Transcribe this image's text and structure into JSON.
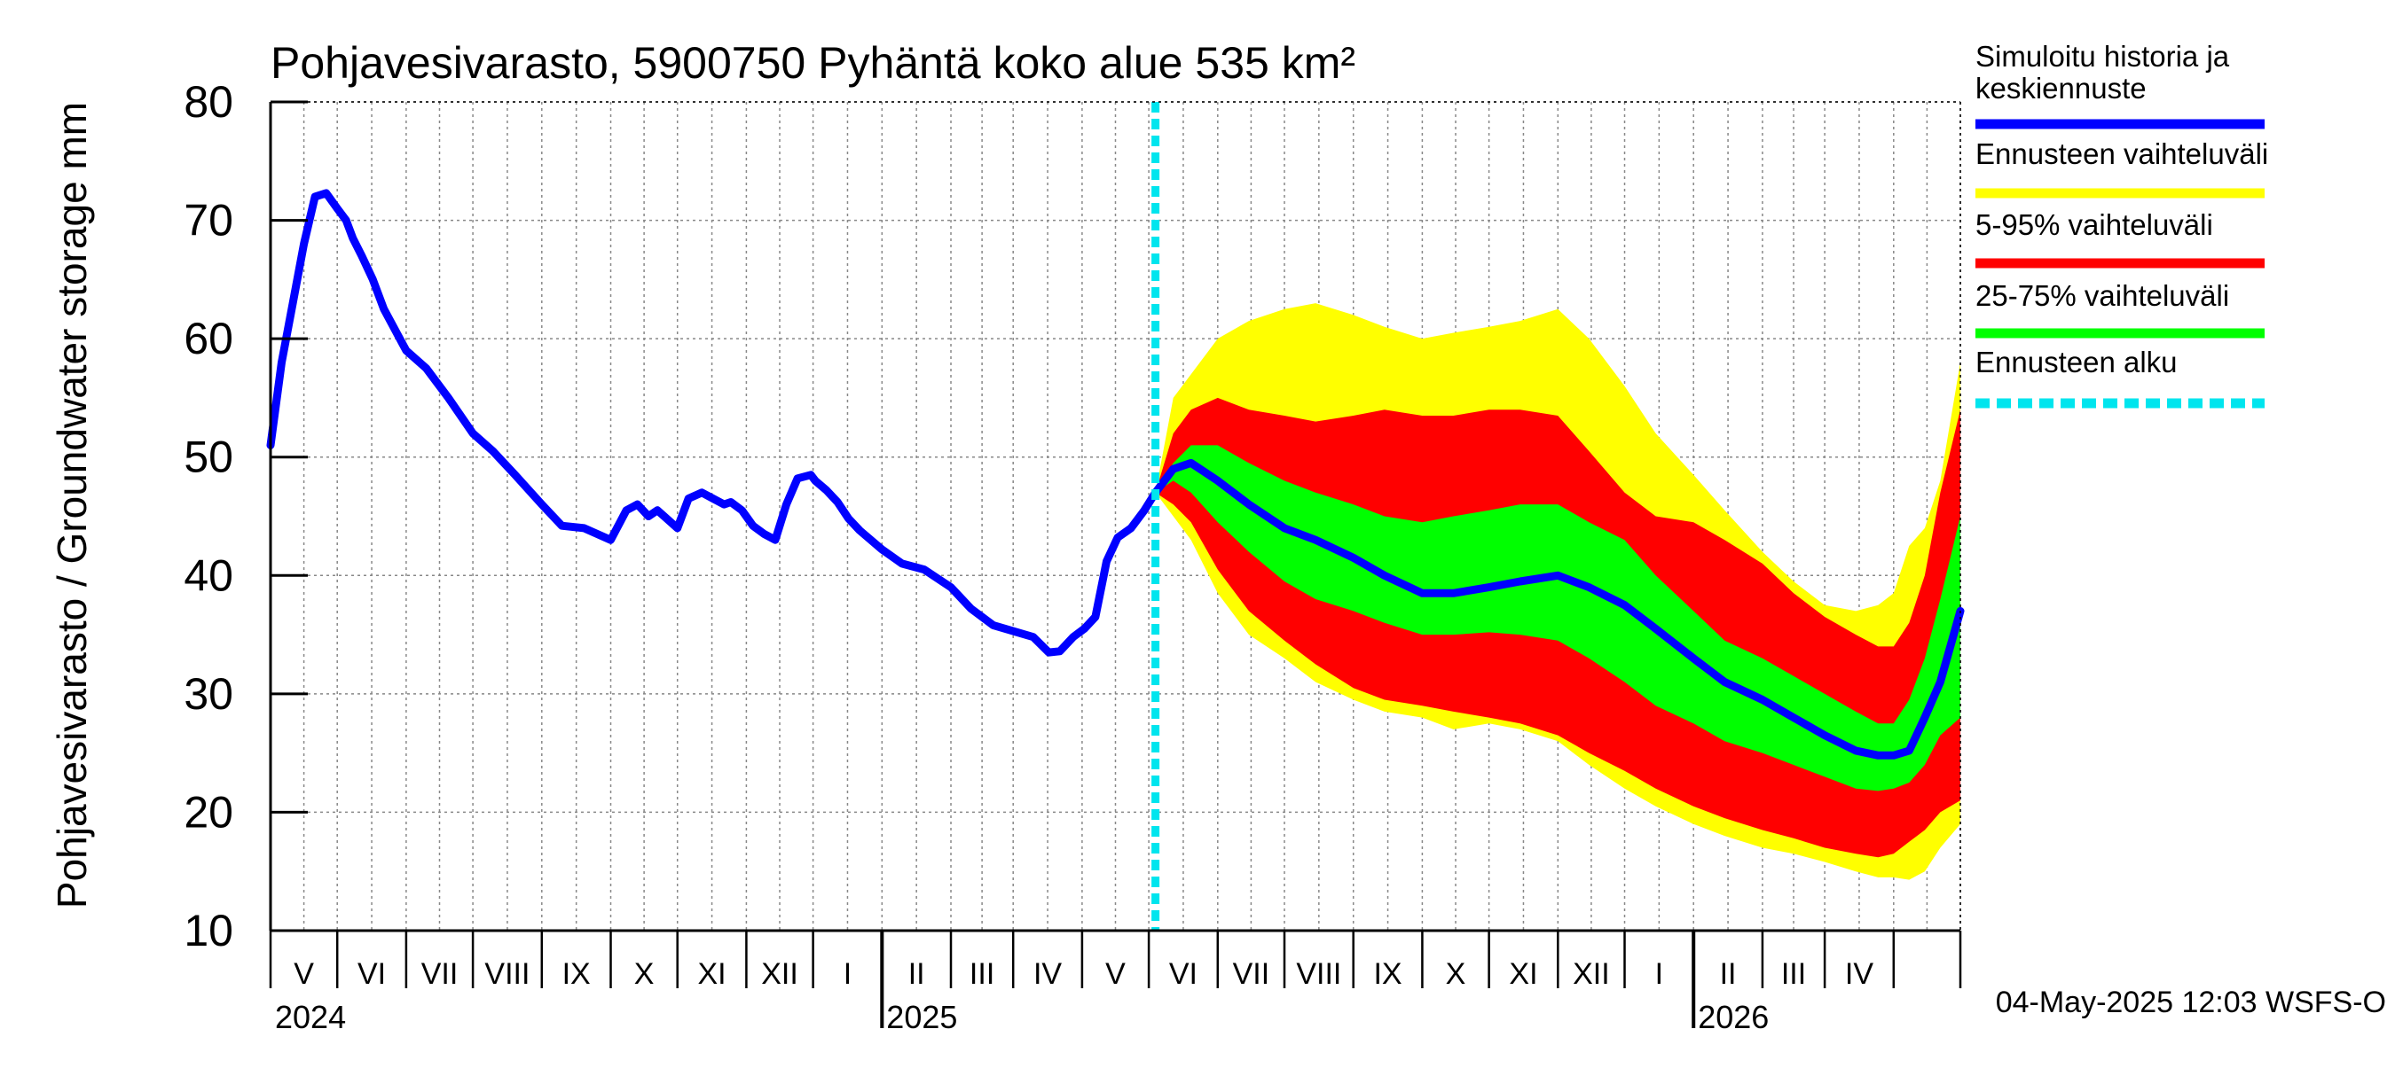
{
  "chart_data": {
    "type": "area",
    "title": "Pohjavesivarasto, 5900750 Pyhäntä koko alue 535 km²",
    "ylabel": "Pohjavesivarasto / Groundwater storage   mm",
    "ylim": [
      10,
      80
    ],
    "yticks": [
      "10",
      "20",
      "30",
      "40",
      "50",
      "60",
      "70",
      "80"
    ],
    "x_start": "2024-04-01",
    "x_end": "2026-05-01",
    "forecast_start": "2025-05-04",
    "month_labels": [
      "V",
      "VI",
      "VII",
      "VIII",
      "IX",
      "X",
      "XI",
      "XII",
      "I",
      "II",
      "III",
      "IV",
      "V",
      "VI",
      "VII",
      "VIII",
      "IX",
      "X",
      "XI",
      "XII",
      "I",
      "II",
      "III",
      "IV"
    ],
    "year_labels": [
      "2024",
      "2025",
      "2026"
    ],
    "grid": true,
    "footer": "04-May-2025 12:03 WSFS-O",
    "legend_position": "right",
    "legend": [
      {
        "label": "Simuloitu historia ja keskiennuste",
        "line1": "Simuloitu historia ja",
        "line2": "keskiennuste",
        "color": "#0000ff",
        "style": "solid"
      },
      {
        "label": "Ennusteen vaihteluväli",
        "color": "#ffff00",
        "style": "solid"
      },
      {
        "label": "5-95% vaihteluväli",
        "color": "#ff0000",
        "style": "solid"
      },
      {
        "label": "25-75% vaihteluväli",
        "color": "#00ff00",
        "style": "solid"
      },
      {
        "label": "Ennusteen alku",
        "color": "#00e5ee",
        "style": "dashed"
      }
    ],
    "history": {
      "x": [
        "2024-04-01",
        "2024-04-06",
        "2024-04-11",
        "2024-04-16",
        "2024-04-21",
        "2024-04-26",
        "2024-05-01",
        "2024-05-05",
        "2024-05-08",
        "2024-05-12",
        "2024-05-17",
        "2024-05-22",
        "2024-06-01",
        "2024-06-10",
        "2024-06-20",
        "2024-07-01",
        "2024-07-10",
        "2024-07-20",
        "2024-08-01",
        "2024-08-10",
        "2024-08-20",
        "2024-09-01",
        "2024-09-08",
        "2024-09-13",
        "2024-09-18",
        "2024-09-22",
        "2024-09-25",
        "2024-10-01",
        "2024-10-06",
        "2024-10-12",
        "2024-10-17",
        "2024-10-22",
        "2024-10-25",
        "2024-10-30",
        "2024-11-04",
        "2024-11-09",
        "2024-11-14",
        "2024-11-19",
        "2024-11-24",
        "2024-11-30",
        "2024-12-02",
        "2024-12-07",
        "2024-12-12",
        "2024-12-17",
        "2024-12-22",
        "2025-01-01",
        "2025-01-10",
        "2025-01-20",
        "2025-02-01",
        "2025-02-10",
        "2025-02-20",
        "2025-03-01",
        "2025-03-10",
        "2025-03-17",
        "2025-03-22",
        "2025-03-28",
        "2025-04-02",
        "2025-04-07",
        "2025-04-12",
        "2025-04-17",
        "2025-04-23",
        "2025-04-29",
        "2025-05-04"
      ],
      "y": [
        51,
        58,
        63,
        68,
        72,
        72.3,
        71,
        70,
        68.5,
        67,
        65,
        62.5,
        59,
        57.5,
        55,
        52,
        50.5,
        48.5,
        46,
        44.2,
        44,
        43,
        45.5,
        46,
        45,
        45.5,
        45,
        44,
        46.5,
        47,
        46.5,
        46,
        46.2,
        45.5,
        44.2,
        43.5,
        43,
        46,
        48.2,
        48.5,
        48,
        47.2,
        46.2,
        44.8,
        43.8,
        42.2,
        41,
        40.5,
        39,
        37.2,
        35.8,
        35.3,
        34.8,
        33.5,
        33.6,
        34.8,
        35.5,
        36.5,
        41.2,
        43.2,
        44,
        45.5,
        47
      ]
    },
    "forecast": {
      "x": [
        "2025-05-04",
        "2025-05-12",
        "2025-05-20",
        "2025-06-01",
        "2025-06-15",
        "2025-07-01",
        "2025-07-15",
        "2025-08-01",
        "2025-08-15",
        "2025-09-01",
        "2025-09-15",
        "2025-10-01",
        "2025-10-15",
        "2025-11-01",
        "2025-11-15",
        "2025-12-01",
        "2025-12-15",
        "2026-01-01",
        "2026-01-15",
        "2026-02-01",
        "2026-02-15",
        "2026-03-01",
        "2026-03-15",
        "2026-03-25",
        "2026-04-01",
        "2026-04-08",
        "2026-04-15",
        "2026-04-22",
        "2026-05-01"
      ],
      "median": [
        47,
        49,
        49.5,
        48,
        46,
        44,
        43,
        41.5,
        40,
        38.5,
        38.5,
        39,
        39.5,
        40,
        39,
        37.5,
        35.5,
        33,
        31,
        29.5,
        28,
        26.5,
        25.2,
        24.8,
        24.8,
        25.2,
        28,
        31,
        37
      ],
      "p25": [
        47,
        48,
        47,
        44.5,
        42,
        39.5,
        38,
        37,
        36,
        35,
        35,
        35.2,
        35,
        34.5,
        33,
        31,
        29,
        27.5,
        26,
        25,
        24,
        23,
        22,
        21.8,
        22,
        22.5,
        24,
        26.5,
        28
      ],
      "p75": [
        47,
        49.5,
        51,
        51,
        49.5,
        48,
        47,
        46,
        45,
        44.5,
        45,
        45.5,
        46,
        46,
        44.5,
        43,
        40,
        37,
        34.5,
        33,
        31.5,
        30,
        28.5,
        27.5,
        27.5,
        29.5,
        33,
        38,
        45
      ],
      "p05": [
        47,
        46,
        44.5,
        40.5,
        37,
        34.5,
        32.5,
        30.5,
        29.5,
        29,
        28.5,
        28,
        27.5,
        26.5,
        25,
        23.5,
        22,
        20.5,
        19.5,
        18.5,
        17.8,
        17,
        16.5,
        16.2,
        16.5,
        17.5,
        18.5,
        20,
        21
      ],
      "p95": [
        47,
        52,
        54,
        55,
        54,
        53.5,
        53,
        53.5,
        54,
        53.5,
        53.5,
        54,
        54,
        53.5,
        50.5,
        47,
        45,
        44.5,
        43,
        41,
        38.5,
        36.5,
        35,
        34,
        34,
        36,
        40,
        47,
        54
      ],
      "min": [
        47,
        45,
        43,
        38.5,
        35,
        33,
        31,
        29.5,
        28.5,
        28,
        27,
        27.5,
        27,
        26,
        24,
        22,
        20.5,
        19,
        18,
        17,
        16.5,
        15.8,
        15,
        14.5,
        14.5,
        14.3,
        15,
        17,
        19
      ],
      "max": [
        47,
        55,
        57,
        60,
        61.5,
        62.5,
        63,
        62,
        61,
        60,
        60.5,
        61,
        61.5,
        62.5,
        60,
        56,
        52,
        48.5,
        45.5,
        42,
        39.5,
        37.5,
        37,
        37.5,
        38.5,
        42.5,
        44,
        48,
        58
      ]
    }
  }
}
